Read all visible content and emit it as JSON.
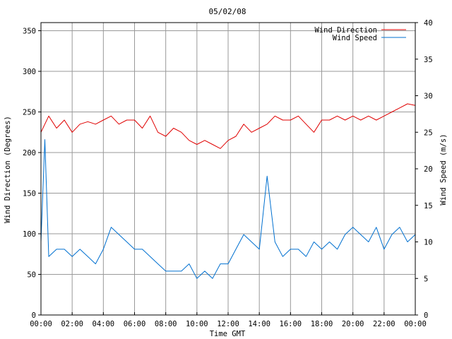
{
  "chart_data": {
    "type": "line",
    "title": "05/02/08",
    "xlabel": "Time GMT",
    "ylabel_left": "Wind Direction (Degrees)",
    "ylabel_right": "Wind Speed (m/s)",
    "x_ticks": [
      "00:00",
      "02:00",
      "04:00",
      "06:00",
      "08:00",
      "10:00",
      "12:00",
      "14:00",
      "16:00",
      "18:00",
      "20:00",
      "22:00",
      "00:00"
    ],
    "x_range_hours": [
      0,
      24
    ],
    "y_left_ticks": [
      "0",
      "50",
      "100",
      "150",
      "200",
      "250",
      "300",
      "350"
    ],
    "y_left_range": [
      0,
      360
    ],
    "y_right_ticks": [
      "0",
      "5",
      "10",
      "15",
      "20",
      "25",
      "30",
      "35",
      "40"
    ],
    "y_right_range": [
      0,
      40
    ],
    "grid": true,
    "legend_position": "top-right",
    "series": [
      {
        "name": "Wind Direction",
        "axis": "left",
        "color": "#e00000",
        "x": [
          0,
          0.5,
          1,
          1.5,
          2,
          2.5,
          3,
          3.5,
          4,
          4.5,
          5,
          5.5,
          6,
          6.5,
          7,
          7.5,
          8,
          8.5,
          9,
          9.5,
          10,
          10.5,
          11,
          11.5,
          12,
          12.5,
          13,
          13.5,
          14,
          14.5,
          15,
          15.5,
          16,
          16.5,
          17,
          17.5,
          18,
          18.5,
          19,
          19.5,
          20,
          20.5,
          21,
          21.5,
          22,
          22.5,
          23,
          23.5,
          24
        ],
        "values": [
          225,
          245,
          230,
          240,
          225,
          235,
          238,
          235,
          240,
          245,
          235,
          240,
          240,
          230,
          245,
          225,
          220,
          230,
          225,
          215,
          210,
          215,
          210,
          205,
          215,
          220,
          235,
          225,
          230,
          235,
          245,
          240,
          240,
          245,
          235,
          225,
          240,
          240,
          245,
          240,
          245,
          240,
          245,
          240,
          245,
          250,
          255,
          260,
          258
        ]
      },
      {
        "name": "Wind Speed",
        "axis": "right",
        "color": "#0070d0",
        "x": [
          0,
          0.25,
          0.5,
          1,
          1.5,
          2,
          2.5,
          3,
          3.5,
          4,
          4.5,
          5,
          5.5,
          6,
          6.5,
          7,
          7.5,
          8,
          8.5,
          9,
          9.5,
          10,
          10.5,
          11,
          11.5,
          12,
          12.5,
          13,
          13.5,
          14,
          14.5,
          15,
          15.5,
          16,
          16.5,
          17,
          17.5,
          18,
          18.5,
          19,
          19.5,
          20,
          20.5,
          21,
          21.5,
          22,
          22.5,
          23,
          23.5,
          24
        ],
        "values": [
          10,
          24,
          8,
          9,
          9,
          8,
          9,
          8,
          7,
          9,
          12,
          11,
          10,
          9,
          9,
          8,
          7,
          6,
          6,
          6,
          7,
          5,
          6,
          5,
          7,
          7,
          9,
          11,
          10,
          9,
          19,
          10,
          8,
          9,
          9,
          8,
          10,
          9,
          10,
          9,
          11,
          12,
          11,
          10,
          12,
          9,
          11,
          12,
          10,
          11
        ]
      }
    ]
  }
}
